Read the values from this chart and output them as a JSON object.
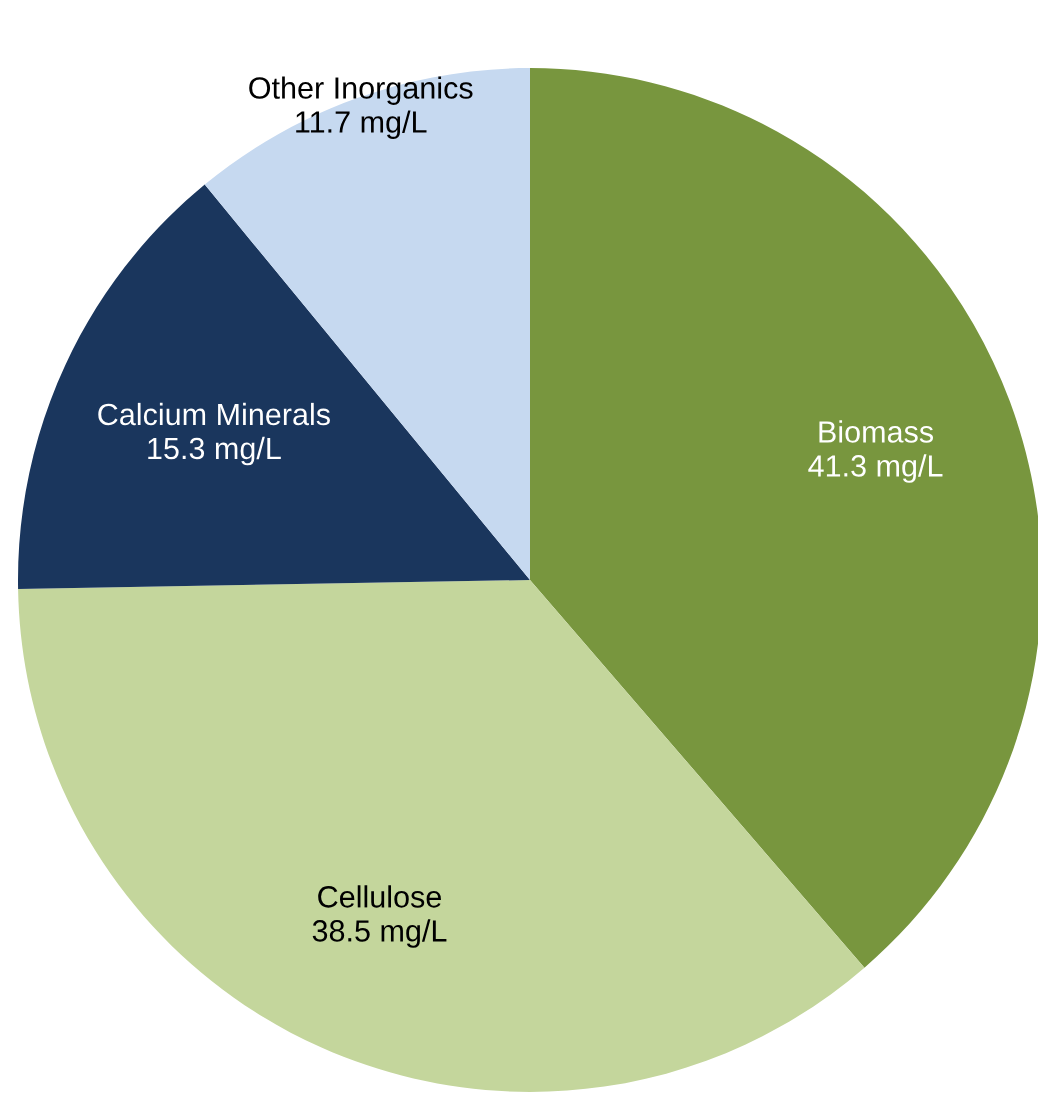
{
  "chart_data": {
    "type": "pie",
    "categories": [
      "Biomass",
      "Cellulose",
      "Calcium Minerals",
      "Other Inorganics"
    ],
    "values": [
      41.3,
      38.5,
      15.3,
      11.7
    ],
    "value_labels": [
      "41.3 mg/L",
      "38.5 mg/L",
      "15.3 mg/L",
      "11.7 mg/L"
    ],
    "colors": [
      "#78963e",
      "#c4d69c",
      "#1a365d",
      "#c6d9f0"
    ]
  }
}
